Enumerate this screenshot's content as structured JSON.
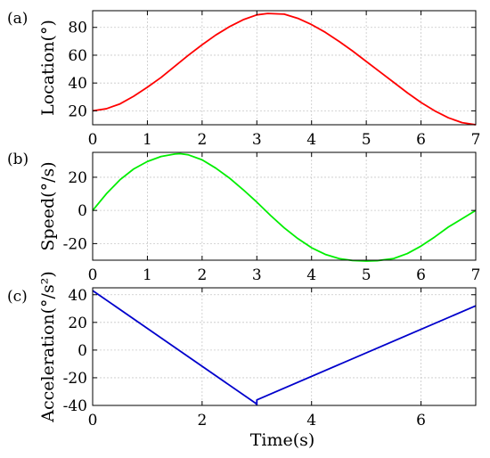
{
  "chart_data": [
    {
      "type": "line",
      "panel_label": "(a)",
      "ylabel": "Location(°)",
      "xlabel": "",
      "xlim": [
        0,
        7
      ],
      "ylim": [
        10,
        92
      ],
      "xticks": [
        0,
        1,
        2,
        3,
        4,
        5,
        6,
        7
      ],
      "yticks": [
        20,
        40,
        60,
        80
      ],
      "grid": true,
      "series": [
        {
          "color": "#ff0000",
          "x": [
            0,
            0.25,
            0.5,
            0.75,
            1,
            1.25,
            1.5,
            1.75,
            2,
            2.25,
            2.5,
            2.75,
            3,
            3.2,
            3.5,
            3.75,
            4,
            4.25,
            4.5,
            4.75,
            5,
            5.25,
            5.5,
            5.75,
            6,
            6.25,
            6.5,
            6.75,
            7
          ],
          "y": [
            20,
            21.5,
            25,
            30.5,
            37,
            44,
            52,
            60,
            67.5,
            74.5,
            80.5,
            85.5,
            89,
            90,
            89.5,
            86.5,
            82,
            76.5,
            70,
            63,
            55.5,
            48,
            40.5,
            33,
            26,
            20,
            15,
            11.5,
            10
          ]
        }
      ]
    },
    {
      "type": "line",
      "panel_label": "(b)",
      "ylabel": "Speed(°/s)",
      "xlabel": "",
      "xlim": [
        0,
        7
      ],
      "ylim": [
        -30,
        35
      ],
      "xticks": [
        0,
        1,
        2,
        3,
        4,
        5,
        6,
        7
      ],
      "yticks": [
        -20,
        0,
        20
      ],
      "grid": true,
      "series": [
        {
          "color": "#00ee00",
          "x": [
            0,
            0.25,
            0.5,
            0.75,
            1,
            1.25,
            1.5,
            1.6,
            1.75,
            2,
            2.25,
            2.5,
            2.75,
            3,
            3.25,
            3.5,
            3.75,
            4,
            4.25,
            4.5,
            4.75,
            5,
            5.2,
            5.5,
            5.75,
            6,
            6.25,
            6.5,
            6.75,
            7
          ],
          "y": [
            0,
            10,
            18.5,
            25,
            29.5,
            32.5,
            34,
            34.2,
            33.5,
            30.5,
            25.5,
            19.5,
            12.5,
            5,
            -3,
            -10.5,
            -17,
            -22.5,
            -26.5,
            -29,
            -30.2,
            -30.5,
            -30.3,
            -29,
            -26,
            -21.5,
            -16,
            -10,
            -5,
            0
          ]
        }
      ]
    },
    {
      "type": "line",
      "panel_label": "(c)",
      "ylabel": "Acceleration(°/s²)",
      "xlabel": "Time(s)",
      "xlim": [
        0,
        7
      ],
      "ylim": [
        -40,
        45
      ],
      "xticks": [
        0,
        2,
        4,
        6
      ],
      "yticks": [
        -40,
        -20,
        0,
        20,
        40
      ],
      "grid": true,
      "series": [
        {
          "color": "#0000cc",
          "x": [
            0,
            2.98,
            3.0,
            3.0,
            7
          ],
          "y": [
            43,
            -38.5,
            -39.5,
            -36,
            32
          ]
        }
      ]
    }
  ]
}
